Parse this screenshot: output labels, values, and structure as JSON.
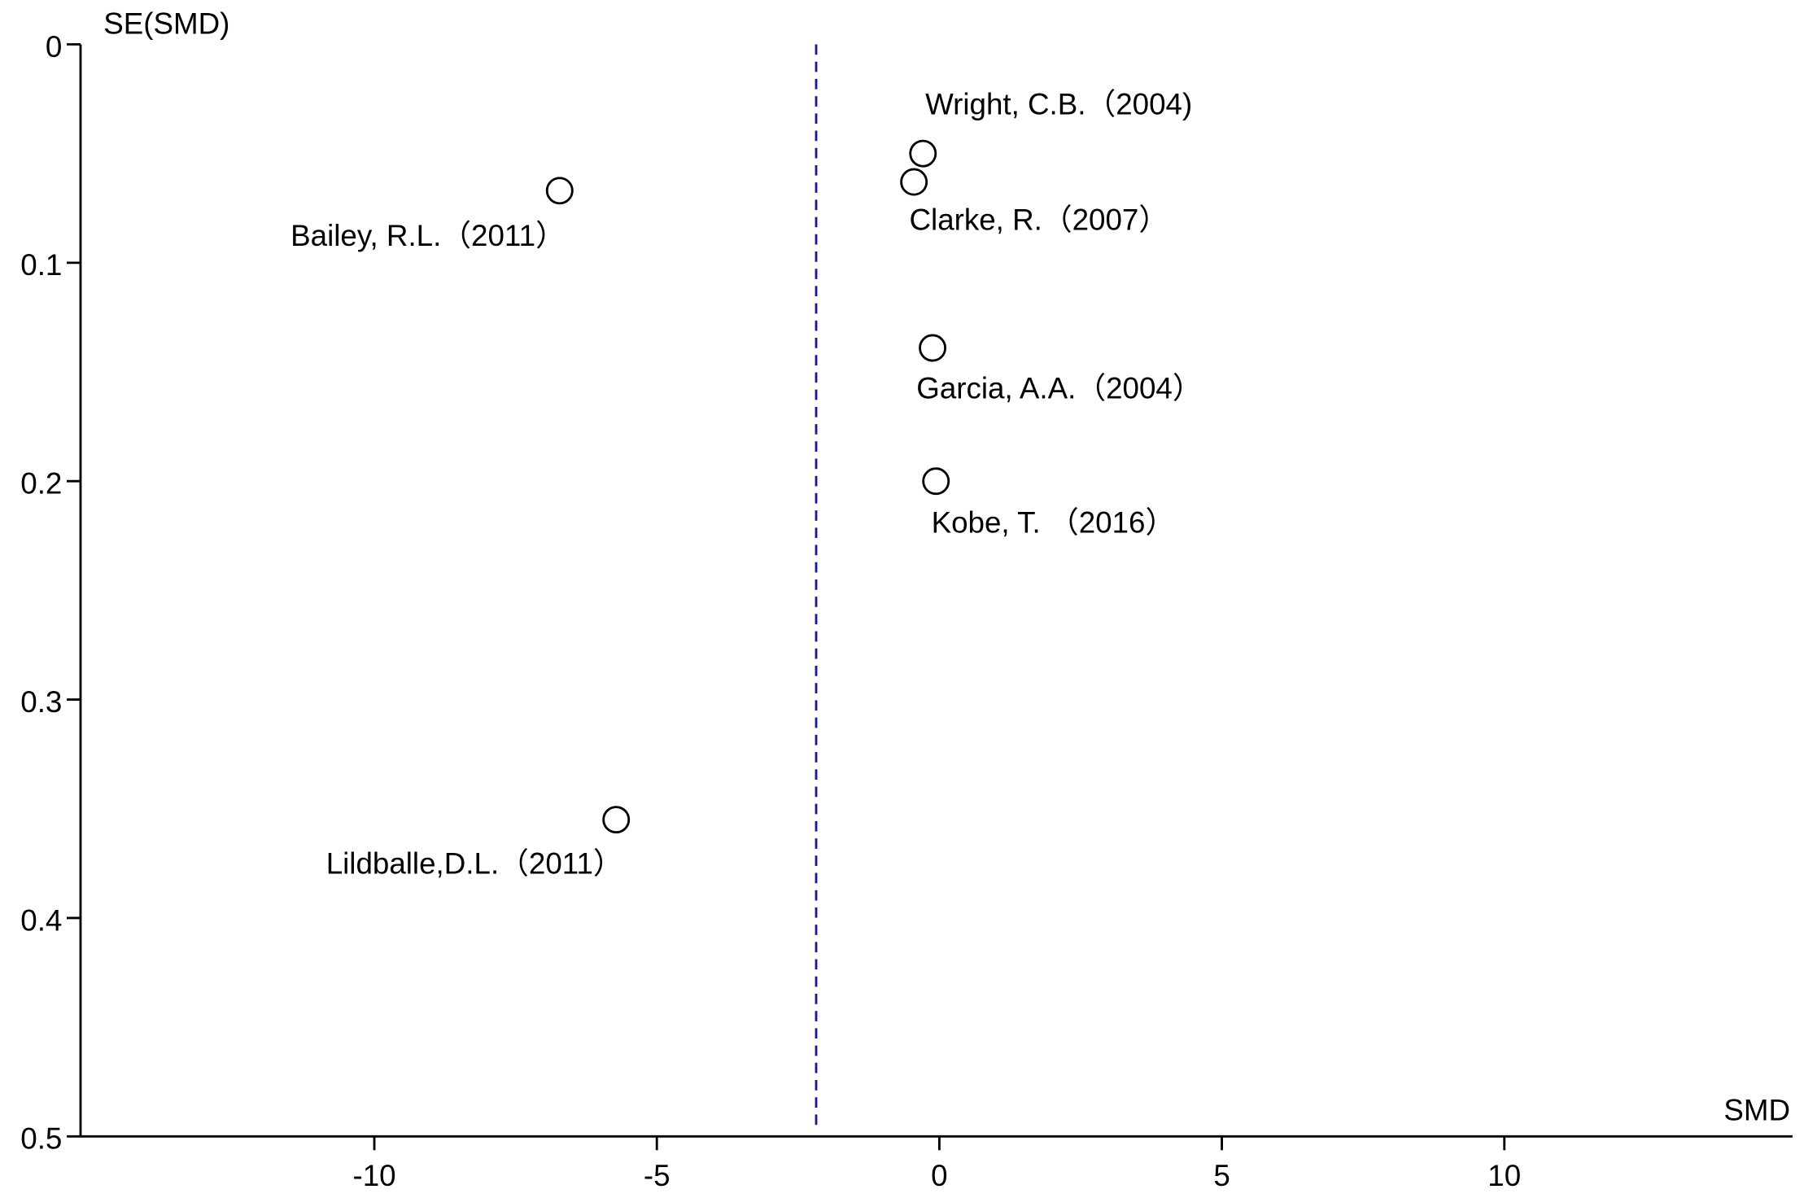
{
  "chart_data": {
    "type": "scatter",
    "x_label": "SMD",
    "y_label": "SE(SMD)",
    "x": [
      -0.29,
      -0.45,
      -6.72,
      -0.12,
      -0.06,
      -5.72
    ],
    "values": [
      0.05,
      0.063,
      0.067,
      0.139,
      0.2,
      0.355
    ],
    "point_labels": [
      "Wright, C.B.（2004)",
      "Clarke, R.（2007）",
      "Bailey, R.L.（2011）",
      "Garcia, A.A.（2004）",
      "Kobe, T. （2016）",
      "Lildballe,D.L.（2011）"
    ],
    "reference_line": -2.18,
    "reference_color": "#1a1a8c",
    "xlim": [
      -15.2,
      15.1
    ],
    "xticks": [
      -10,
      -5,
      0,
      5,
      10
    ],
    "ylim": [
      0,
      0.5
    ],
    "yticks": [
      0,
      0.1,
      0.2,
      0.3,
      0.4,
      0.5
    ],
    "y_inverted": true
  }
}
